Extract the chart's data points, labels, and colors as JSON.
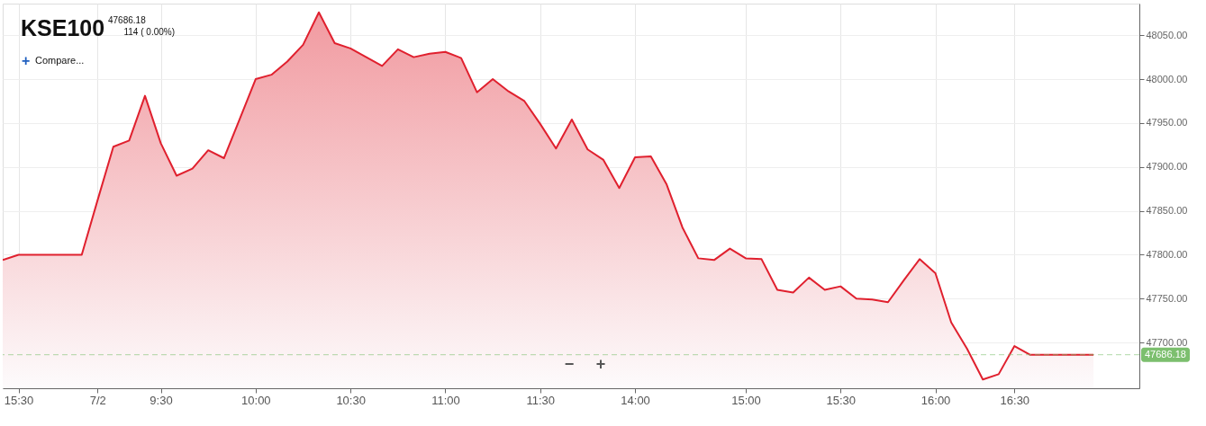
{
  "chart_data": {
    "type": "area",
    "title": "KSE100",
    "subtitle": "47686.18",
    "annotations": [
      "114 ( 0.00%)",
      "+",
      "Compare...",
      "−",
      "+"
    ],
    "categories": [
      null,
      "15:30",
      null,
      null,
      null,
      null,
      "7/2",
      null,
      null,
      null,
      "9:30",
      null,
      null,
      null,
      null,
      null,
      "10:00",
      null,
      null,
      null,
      null,
      null,
      "10:30",
      null,
      null,
      null,
      null,
      null,
      "11:00",
      null,
      null,
      null,
      null,
      null,
      "11:30",
      null,
      null,
      null,
      null,
      null,
      "14:00",
      null,
      null,
      null,
      null,
      null,
      null,
      "15:00",
      null,
      null,
      null,
      null,
      null,
      "15:30",
      null,
      null,
      null,
      null,
      null,
      "16:00",
      null,
      null,
      null,
      null,
      "16:30",
      null,
      null,
      null,
      null,
      null
    ],
    "series": [
      {
        "color": "#e0202e",
        "values": [
          47794,
          47800,
          47800,
          47800,
          47800,
          47800,
          47862,
          47923,
          47930,
          47981,
          47927,
          47890,
          47898,
          47919,
          47910,
          47955,
          48000,
          48005,
          48020,
          48039,
          48076,
          48041,
          48035,
          48025,
          48015,
          48034,
          48025,
          48029,
          48031,
          48024,
          47985,
          48000,
          47986,
          47975,
          47949,
          47921,
          47954,
          47920,
          47908,
          47876,
          47911,
          47912,
          47880,
          47831,
          47796,
          47794,
          47807,
          47796,
          47795,
          47760,
          47757,
          47774,
          47760,
          47764,
          47750,
          47749,
          47746,
          47771,
          47795,
          47779,
          47723,
          47693,
          47658,
          47664,
          47696,
          47686,
          47686,
          47686,
          47686,
          47686
        ]
      }
    ],
    "ylim": [
      47648,
      48086
    ],
    "yticks": [
      {
        "value": 47700,
        "label": "47700.00"
      },
      {
        "value": 47750,
        "label": "47750.00"
      },
      {
        "value": 47800,
        "label": "47800.00"
      },
      {
        "value": 47850,
        "label": "47850.00"
      },
      {
        "value": 47900,
        "label": "47900.00"
      },
      {
        "value": 47950,
        "label": "47950.00"
      },
      {
        "value": 48000,
        "label": "48000.00"
      },
      {
        "value": 48050,
        "label": "48050.00"
      }
    ],
    "ref_lines": [
      {
        "axis": "y",
        "value": 47686.18,
        "label": "47686.18",
        "color": "#7cbf6e",
        "line_style": "dashed"
      }
    ],
    "grid": true,
    "marker": "none",
    "line_style": "solid"
  }
}
